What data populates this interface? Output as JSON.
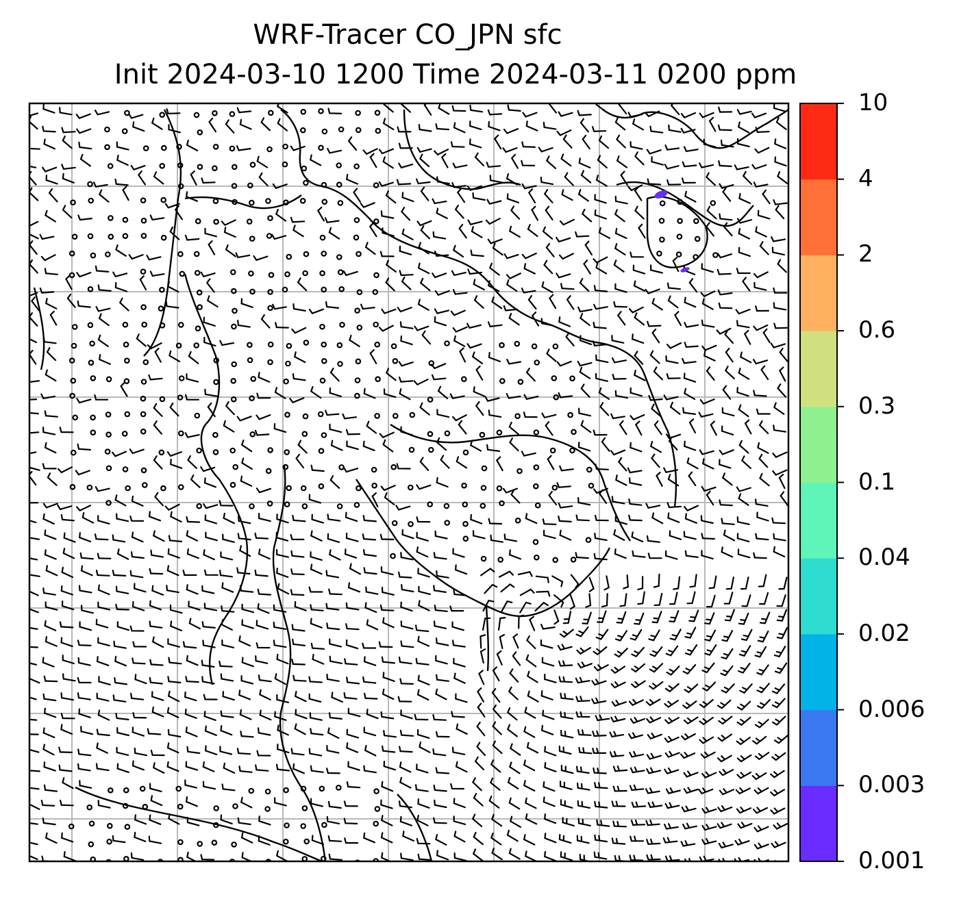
{
  "title": {
    "line1": "WRF-Tracer CO_JPN sfc",
    "line2": "Init 2024-03-10 1200 Time 2024-03-11 0200 ppm"
  },
  "colorbar": {
    "levels": [
      "0.001",
      "0.003",
      "0.006",
      "0.02",
      "0.04",
      "0.1",
      "0.3",
      "0.6",
      "2",
      "4",
      "10"
    ],
    "colors": [
      "#6a2cff",
      "#3a78f0",
      "#00b3e8",
      "#2fdcd0",
      "#5ff5b8",
      "#8ff08f",
      "#d0e07e",
      "#ffb060",
      "#ff7038",
      "#ff2a14"
    ]
  },
  "map": {
    "gridlines": true,
    "wind_barbs": true,
    "tracer_patches_color": "#6a2cff"
  }
}
